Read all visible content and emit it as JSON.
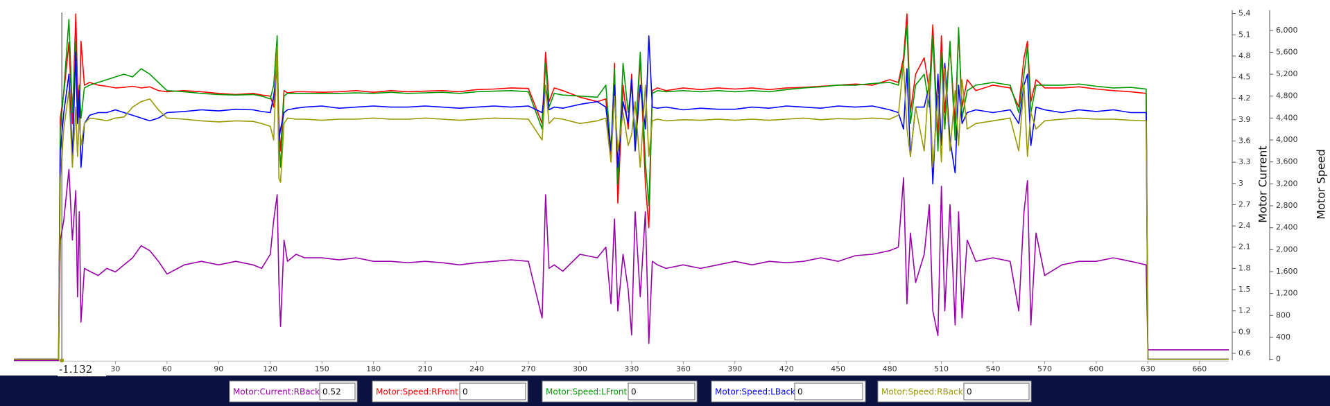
{
  "chart_data": {
    "type": "line",
    "ylabel": "Motor Current",
    "y2label": "Motor Speed",
    "cursor_x": -1.132,
    "xlim": [
      -29,
      677
    ],
    "xticks": [
      30,
      60,
      90,
      120,
      150,
      180,
      210,
      240,
      270,
      300,
      330,
      360,
      390,
      420,
      450,
      480,
      510,
      540,
      570,
      600,
      630,
      660
    ],
    "ylim": [
      0.5,
      5.45
    ],
    "yticks": [
      0.6,
      0.9,
      1.2,
      1.5,
      1.8,
      2.1,
      2.4,
      2.7,
      3,
      3.3,
      3.6,
      3.9,
      4.2,
      4.5,
      4.8,
      5.1,
      5.4
    ],
    "y2lim": [
      -20,
      6370
    ],
    "y2ticks": [
      0,
      400,
      800,
      {
        "value": 1200,
        "label": "1,200"
      },
      {
        "value": 1600,
        "label": "1,600"
      },
      {
        "value": 2000,
        "label": "2,000"
      },
      {
        "value": 2400,
        "label": "2,400"
      },
      {
        "value": 2800,
        "label": "2,800"
      },
      {
        "value": 3200,
        "label": "3,200"
      },
      {
        "value": 3600,
        "label": "3,600"
      },
      {
        "value": 4000,
        "label": "4,000"
      },
      {
        "value": 4400,
        "label": "4,400"
      },
      {
        "value": 4800,
        "label": "4,800"
      },
      {
        "value": 5200,
        "label": "5,200"
      },
      {
        "value": 5600,
        "label": "5,600"
      },
      {
        "value": 6000,
        "label": "6,000"
      }
    ],
    "x": [
      -29,
      -3,
      -2,
      0,
      3,
      5,
      7,
      8,
      9,
      10,
      12,
      15,
      20,
      25,
      30,
      35,
      40,
      45,
      50,
      55,
      60,
      70,
      80,
      90,
      100,
      110,
      115,
      120,
      122,
      124,
      125,
      126,
      128,
      130,
      135,
      140,
      150,
      160,
      170,
      180,
      190,
      200,
      210,
      220,
      230,
      240,
      250,
      260,
      270,
      278,
      280,
      282,
      285,
      290,
      300,
      310,
      315,
      318,
      320,
      322,
      325,
      328,
      330,
      332,
      335,
      338,
      340,
      342,
      345,
      350,
      360,
      370,
      380,
      390,
      400,
      410,
      420,
      430,
      440,
      450,
      460,
      470,
      480,
      485,
      488,
      490,
      492,
      495,
      500,
      503,
      505,
      508,
      510,
      512,
      515,
      518,
      520,
      522,
      525,
      530,
      540,
      550,
      555,
      558,
      560,
      562,
      565,
      570,
      580,
      590,
      600,
      610,
      620,
      629,
      630,
      677
    ],
    "series": [
      {
        "name": "Motor:Current:RBack",
        "color": "#9900aa",
        "readout": 0.52,
        "values": [
          0.5,
          0.5,
          2.2,
          2.48,
          3.2,
          2.2,
          2.9,
          1.4,
          2.6,
          1.04,
          1.8,
          1.76,
          1.7,
          1.8,
          1.75,
          1.85,
          1.95,
          2.12,
          2.05,
          1.9,
          1.72,
          1.85,
          1.9,
          1.85,
          1.9,
          1.85,
          1.8,
          2.0,
          2.48,
          2.84,
          1.6,
          0.98,
          2.2,
          1.9,
          2.0,
          1.95,
          1.95,
          1.92,
          1.95,
          1.9,
          1.9,
          1.88,
          1.9,
          1.88,
          1.85,
          1.88,
          1.9,
          1.92,
          1.9,
          1.1,
          2.84,
          1.8,
          1.85,
          1.76,
          2.0,
          1.95,
          2.1,
          1.3,
          2.5,
          1.2,
          2.0,
          1.5,
          0.86,
          2.6,
          1.4,
          2.6,
          0.74,
          1.9,
          1.85,
          1.8,
          1.85,
          1.8,
          1.85,
          1.9,
          1.85,
          1.9,
          1.88,
          1.9,
          1.95,
          1.9,
          1.98,
          2.0,
          2.05,
          2.1,
          3.08,
          1.3,
          2.3,
          1.6,
          2.0,
          2.7,
          1.2,
          0.85,
          2.96,
          1.2,
          2.7,
          1.0,
          2.6,
          1.1,
          2.2,
          1.9,
          1.95,
          1.9,
          1.2,
          2.6,
          3.04,
          1.0,
          2.3,
          1.7,
          1.85,
          1.9,
          1.9,
          1.95,
          1.9,
          1.85,
          0.65,
          0.65
        ]
      },
      {
        "name": "Motor:Speed:RFront",
        "color": "#ff0000",
        "axis": "y2",
        "readout": 0,
        "values": [
          0,
          0,
          4400,
          4850,
          5780,
          4300,
          6300,
          5000,
          4300,
          5800,
          5000,
          5050,
          5000,
          4980,
          4950,
          4960,
          4980,
          4950,
          4970,
          4900,
          4880,
          4900,
          4880,
          4850,
          4830,
          4850,
          4820,
          4800,
          4600,
          5600,
          4300,
          3800,
          4900,
          4860,
          4880,
          4880,
          4870,
          4880,
          4900,
          4870,
          4900,
          4880,
          4890,
          4900,
          4880,
          4920,
          4930,
          4950,
          4940,
          4300,
          5600,
          4700,
          4950,
          4900,
          4780,
          4700,
          4750,
          3600,
          5400,
          2850,
          5000,
          4200,
          5200,
          3900,
          5500,
          3200,
          2400,
          4900,
          4950,
          4900,
          4950,
          4920,
          4950,
          4930,
          4950,
          4920,
          4950,
          4960,
          4980,
          5000,
          5020,
          5000,
          5100,
          5050,
          5500,
          6300,
          4500,
          5200,
          5500,
          4900,
          6100,
          4000,
          5900,
          4500,
          5700,
          4300,
          6000,
          4600,
          5100,
          4900,
          5000,
          4950,
          4600,
          5500,
          5800,
          4700,
          5100,
          4950,
          4950,
          4970,
          4930,
          4900,
          4880,
          4850,
          0,
          0
        ]
      },
      {
        "name": "Motor:Speed:LFront",
        "color": "#009900",
        "axis": "y2",
        "readout": 0,
        "values": [
          0,
          0,
          4200,
          4900,
          6200,
          4500,
          5800,
          4400,
          5000,
          4400,
          4950,
          5000,
          5050,
          5100,
          5150,
          5200,
          5150,
          5300,
          5200,
          5050,
          4900,
          4880,
          4850,
          4830,
          4820,
          4830,
          4800,
          4750,
          5000,
          5900,
          4000,
          3500,
          4800,
          4850,
          4850,
          4850,
          4850,
          4850,
          4860,
          4850,
          4870,
          4850,
          4860,
          4870,
          4850,
          4880,
          4890,
          4900,
          4880,
          4200,
          5400,
          4600,
          4850,
          4820,
          4800,
          4780,
          5000,
          3800,
          5300,
          3200,
          5400,
          4500,
          5000,
          4000,
          5600,
          3600,
          2800,
          4850,
          4900,
          4880,
          4900,
          4880,
          4900,
          4880,
          4900,
          4880,
          4920,
          4950,
          4970,
          5000,
          5000,
          5030,
          5050,
          5000,
          5400,
          6100,
          4300,
          5000,
          5200,
          4600,
          5900,
          3800,
          5600,
          4200,
          5800,
          4000,
          6050,
          4400,
          4900,
          5000,
          5050,
          5000,
          4500,
          5200,
          5700,
          4500,
          5000,
          5000,
          5000,
          5020,
          4980,
          4950,
          4960,
          4930,
          0,
          0
        ]
      },
      {
        "name": "Motor:Speed:LBack",
        "color": "#0000ff",
        "axis": "y2",
        "readout": 0,
        "values": [
          0,
          0,
          3800,
          4500,
          5200,
          3700,
          5600,
          4300,
          4900,
          3500,
          4300,
          4450,
          4500,
          4500,
          4550,
          4500,
          4450,
          4400,
          4350,
          4400,
          4500,
          4520,
          4550,
          4530,
          4560,
          4550,
          4520,
          4500,
          4800,
          5300,
          4000,
          4200,
          4500,
          4550,
          4580,
          4600,
          4620,
          4580,
          4600,
          4620,
          4600,
          4600,
          4620,
          4600,
          4580,
          4600,
          4620,
          4600,
          4620,
          4500,
          5000,
          4550,
          4600,
          4580,
          4650,
          4700,
          4600,
          3800,
          5000,
          3500,
          4700,
          4300,
          5100,
          3800,
          5000,
          4200,
          5900,
          4600,
          4580,
          4600,
          4550,
          4580,
          4560,
          4560,
          4600,
          4580,
          4620,
          4600,
          4580,
          4620,
          4600,
          4620,
          4550,
          4500,
          4200,
          5300,
          3700,
          4600,
          4600,
          5000,
          3200,
          5200,
          3900,
          5400,
          4000,
          3400,
          5000,
          4300,
          4500,
          4550,
          4500,
          4550,
          4300,
          5000,
          5200,
          3900,
          4600,
          4550,
          4500,
          4550,
          4520,
          4550,
          4500,
          4500,
          0,
          0
        ]
      },
      {
        "name": "Motor:Speed:RBack",
        "color": "#999900",
        "axis": "y2",
        "readout": 0,
        "values": [
          0,
          0,
          3300,
          4200,
          4900,
          3500,
          4600,
          3700,
          4400,
          3900,
          4300,
          4400,
          4380,
          4350,
          4400,
          4420,
          4600,
          4700,
          4750,
          4550,
          4400,
          4380,
          4350,
          4330,
          4350,
          4340,
          4300,
          4250,
          4000,
          5700,
          3300,
          3230,
          4300,
          4400,
          4380,
          4380,
          4360,
          4380,
          4380,
          4400,
          4380,
          4380,
          4400,
          4380,
          4360,
          4380,
          4400,
          4390,
          4380,
          4000,
          5000,
          4300,
          4400,
          4380,
          4300,
          4350,
          4400,
          3600,
          4800,
          3800,
          4500,
          3900,
          4100,
          4700,
          3500,
          5000,
          3700,
          4350,
          4380,
          4350,
          4370,
          4360,
          4380,
          4360,
          4380,
          4360,
          4380,
          4400,
          4370,
          4390,
          4380,
          4400,
          4380,
          4450,
          5400,
          4200,
          3700,
          4600,
          3800,
          5200,
          3500,
          4800,
          3600,
          5300,
          3800,
          4900,
          3900,
          5100,
          4200,
          4300,
          4350,
          4400,
          3800,
          5000,
          3700,
          4500,
          4200,
          4350,
          4380,
          4400,
          4380,
          4380,
          4360,
          4350,
          0,
          0
        ]
      }
    ]
  }
}
